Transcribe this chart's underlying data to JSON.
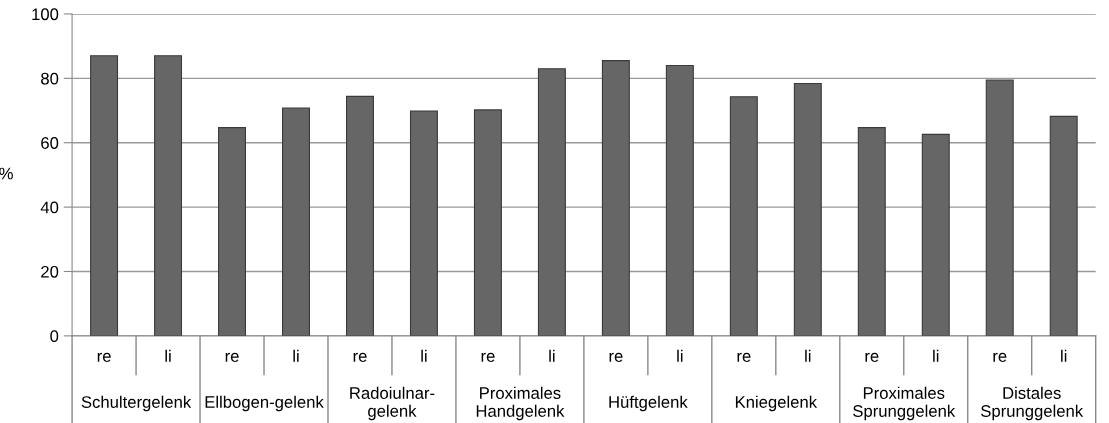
{
  "chart_data": {
    "type": "bar",
    "ylabel": "%",
    "categories": [
      "re",
      "li",
      "re",
      "li",
      "re",
      "li",
      "re",
      "li",
      "re",
      "li",
      "re",
      "li",
      "re",
      "li",
      "re",
      "li"
    ],
    "values": [
      87,
      87,
      64.7,
      70.8,
      74.4,
      69.8,
      70.2,
      83,
      85.5,
      84,
      74.3,
      78.4,
      64.7,
      62.6,
      79.5,
      68.2
    ],
    "color": "#666666",
    "annotations": [
      "Schultergelenk",
      "Ellbogen-gelenk",
      "Radoiulnar-\ngelenk",
      "Proximales\nHandgelenk",
      "Hüftgelenk",
      "Kniegelenk",
      "Proximales\nSprunggelenk",
      "Distales\nSprunggelenk"
    ],
    "ylim": [
      0,
      100
    ],
    "yticks": [
      0,
      20,
      40,
      60,
      80,
      100
    ],
    "grid": "y",
    "legend": false
  }
}
